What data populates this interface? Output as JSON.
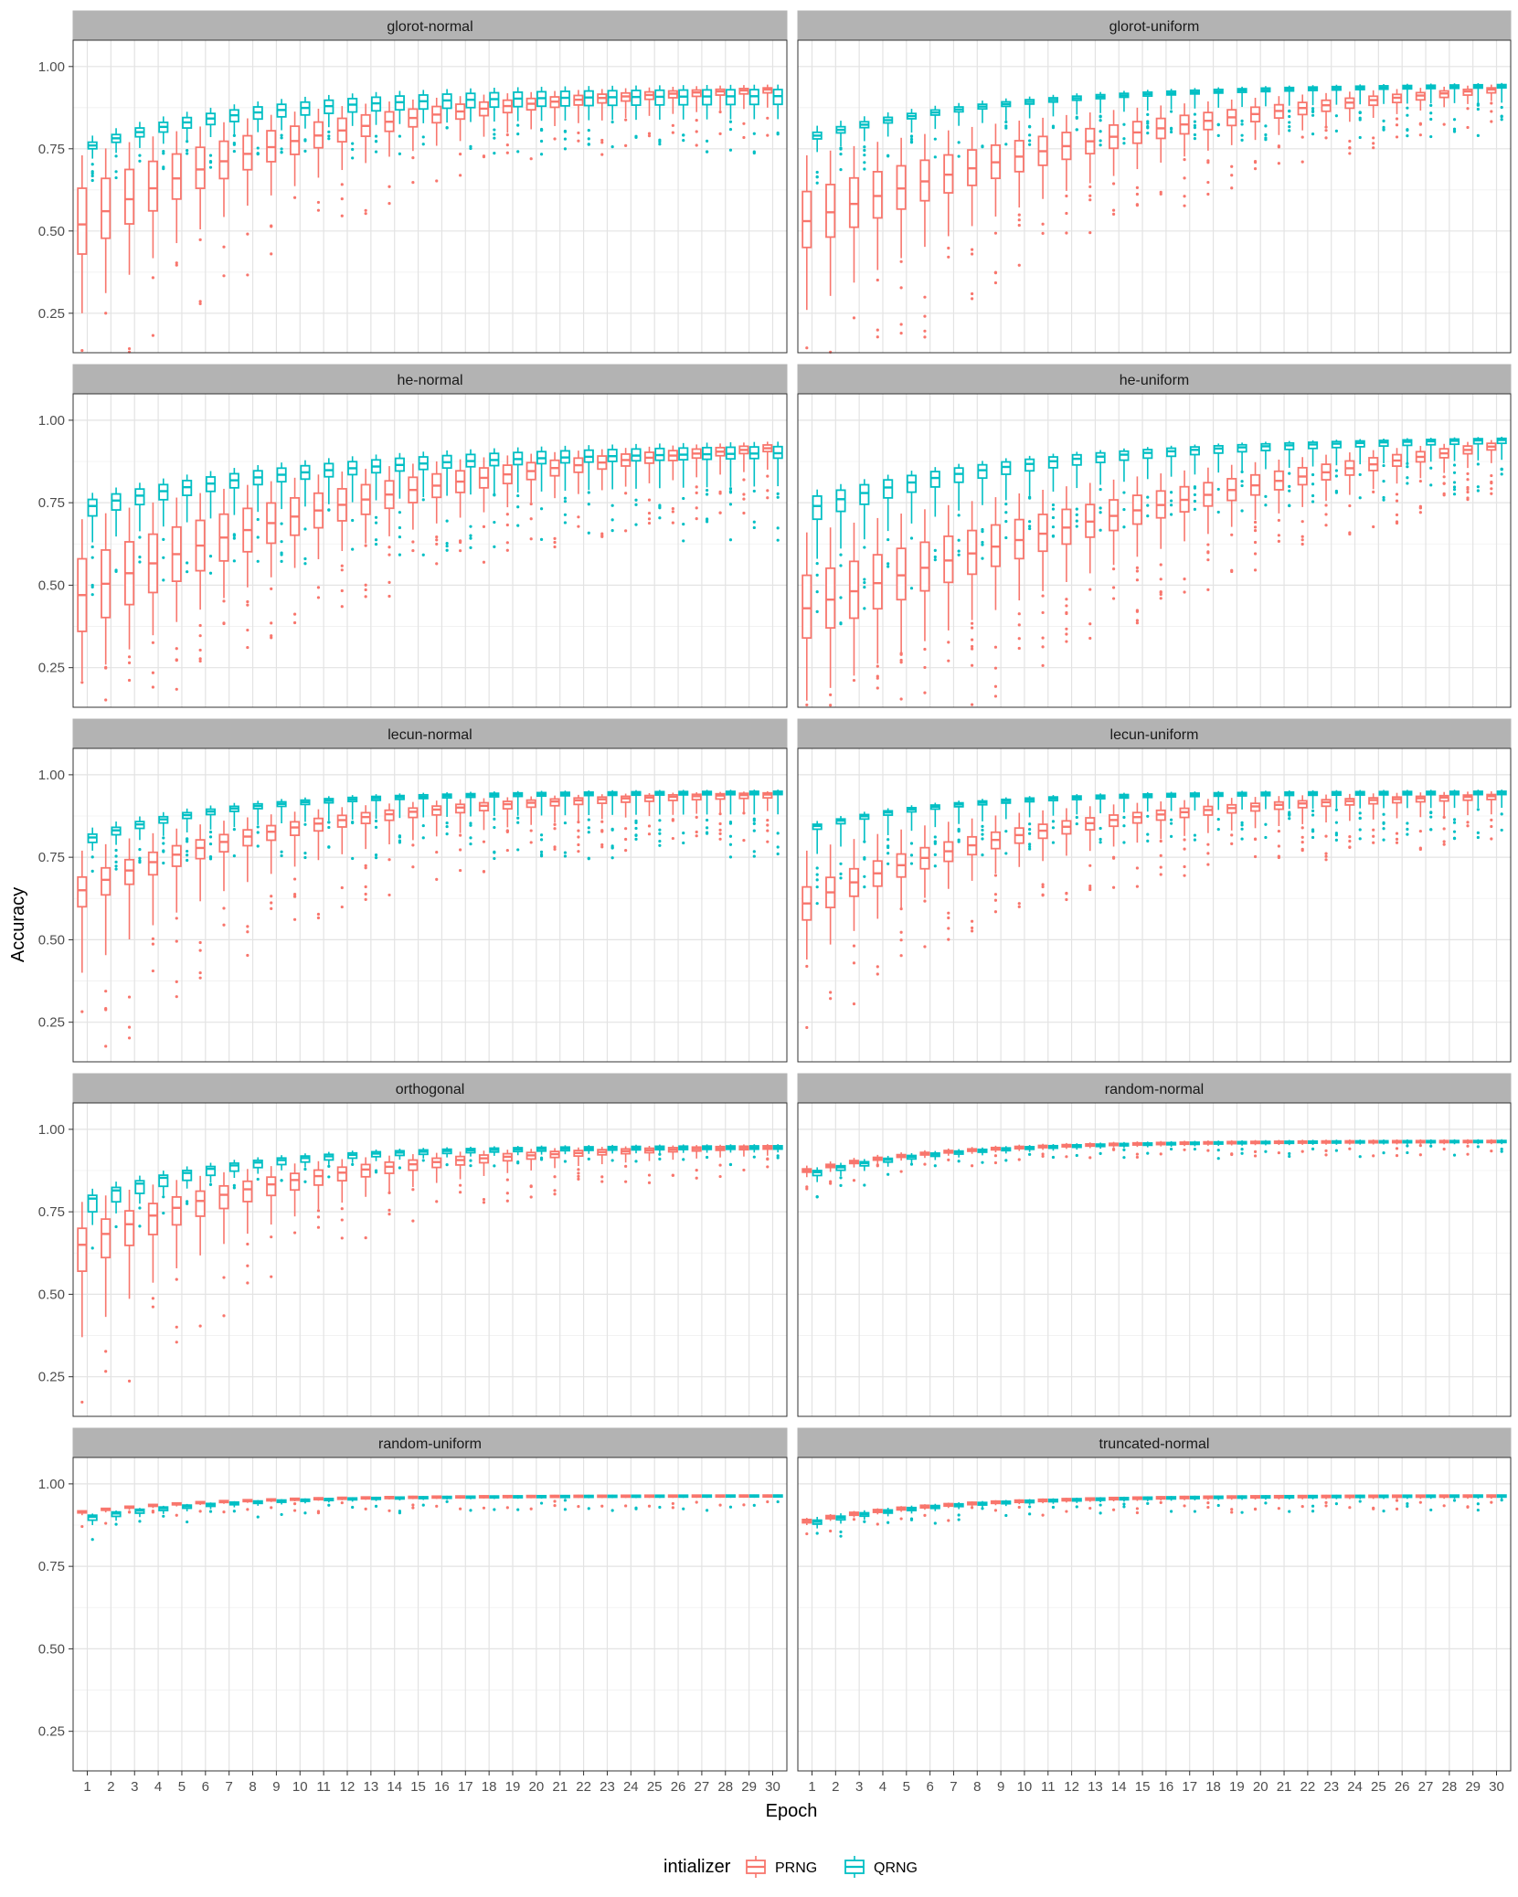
{
  "chart_data": {
    "type": "box",
    "xlabel": "Epoch",
    "ylabel": "Accuracy",
    "ylim": [
      0.13,
      1.08
    ],
    "yticks": [
      0.25,
      0.5,
      0.75,
      1.0
    ],
    "ytick_labels": [
      "0.25",
      "0.50",
      "0.75",
      "1.00"
    ],
    "x": [
      1,
      2,
      3,
      4,
      5,
      6,
      7,
      8,
      9,
      10,
      11,
      12,
      13,
      14,
      15,
      16,
      17,
      18,
      19,
      20,
      21,
      22,
      23,
      24,
      25,
      26,
      27,
      28,
      29,
      30
    ],
    "grid": true,
    "legend": {
      "title": "intializer",
      "position": "bottom",
      "entries": [
        {
          "name": "PRNG",
          "color": "#F8766D"
        },
        {
          "name": "QRNG",
          "color": "#00BFC4"
        }
      ]
    },
    "series_colors": {
      "PRNG": "#F8766D",
      "QRNG": "#00BFC4"
    },
    "facets": [
      {
        "name": "glorot-normal",
        "PRNG": {
          "first": [
            0.25,
            0.43,
            0.52,
            0.63,
            0.73
          ],
          "final": [
            0.875,
            0.92,
            0.93,
            0.935,
            0.945
          ],
          "rate": 0.28,
          "spread": 1.0,
          "outliers": 0.5
        },
        "QRNG": {
          "first": [
            0.72,
            0.75,
            0.76,
            0.77,
            0.79
          ],
          "final": [
            0.84,
            0.885,
            0.91,
            0.93,
            0.945
          ],
          "rate": 0.45,
          "spread": 1.7,
          "outliers": 0.8
        }
      },
      {
        "name": "glorot-uniform",
        "PRNG": {
          "first": [
            0.26,
            0.45,
            0.53,
            0.62,
            0.73
          ],
          "final": [
            0.895,
            0.92,
            0.93,
            0.935,
            0.945
          ],
          "rate": 0.16,
          "spread": 0.8,
          "outliers": 0.7
        },
        "QRNG": {
          "first": [
            0.74,
            0.78,
            0.79,
            0.8,
            0.82
          ],
          "final": [
            0.89,
            0.935,
            0.94,
            0.945,
            0.95
          ],
          "rate": 0.35,
          "spread": 1.0,
          "outliers": 1.0
        }
      },
      {
        "name": "he-normal",
        "PRNG": {
          "first": [
            0.21,
            0.36,
            0.47,
            0.58,
            0.7
          ],
          "final": [
            0.85,
            0.905,
            0.915,
            0.925,
            0.935
          ],
          "rate": 0.2,
          "spread": 1.0,
          "outliers": 0.8
        },
        "QRNG": {
          "first": [
            0.63,
            0.71,
            0.74,
            0.76,
            0.78
          ],
          "final": [
            0.8,
            0.885,
            0.9,
            0.92,
            0.935
          ],
          "rate": 0.3,
          "spread": 1.4,
          "outliers": 0.8
        }
      },
      {
        "name": "he-uniform",
        "PRNG": {
          "first": [
            0.15,
            0.34,
            0.43,
            0.53,
            0.66
          ],
          "final": [
            0.87,
            0.91,
            0.92,
            0.93,
            0.94
          ],
          "rate": 0.1,
          "spread": 1.0,
          "outliers": 1.2
        },
        "QRNG": {
          "first": [
            0.58,
            0.7,
            0.74,
            0.77,
            0.79
          ],
          "final": [
            0.88,
            0.93,
            0.94,
            0.945,
            0.95
          ],
          "rate": 0.3,
          "spread": 1.0,
          "outliers": 1.0
        }
      },
      {
        "name": "lecun-normal",
        "PRNG": {
          "first": [
            0.4,
            0.6,
            0.65,
            0.69,
            0.77
          ],
          "final": [
            0.89,
            0.93,
            0.94,
            0.945,
            0.95
          ],
          "rate": 0.32,
          "spread": 0.6,
          "outliers": 0.8
        },
        "QRNG": {
          "first": [
            0.77,
            0.795,
            0.81,
            0.82,
            0.84
          ],
          "final": [
            0.88,
            0.94,
            0.945,
            0.95,
            0.955
          ],
          "rate": 0.5,
          "spread": 0.5,
          "outliers": 1.0
        }
      },
      {
        "name": "lecun-uniform",
        "PRNG": {
          "first": [
            0.44,
            0.56,
            0.61,
            0.66,
            0.77
          ],
          "final": [
            0.88,
            0.925,
            0.935,
            0.94,
            0.95
          ],
          "rate": 0.3,
          "spread": 0.6,
          "outliers": 0.8
        },
        "QRNG": {
          "first": [
            0.76,
            0.835,
            0.845,
            0.85,
            0.86
          ],
          "final": [
            0.9,
            0.94,
            0.945,
            0.95,
            0.955
          ],
          "rate": 0.5,
          "spread": 0.5,
          "outliers": 1.0
        }
      },
      {
        "name": "orthogonal",
        "PRNG": {
          "first": [
            0.37,
            0.57,
            0.65,
            0.7,
            0.78
          ],
          "final": [
            0.92,
            0.94,
            0.945,
            0.95,
            0.955
          ],
          "rate": 0.33,
          "spread": 0.5,
          "outliers": 0.6
        },
        "QRNG": {
          "first": [
            0.71,
            0.75,
            0.79,
            0.8,
            0.82
          ],
          "final": [
            0.93,
            0.94,
            0.945,
            0.95,
            0.955
          ],
          "rate": 0.5,
          "spread": 0.4,
          "outliers": 0.4
        }
      },
      {
        "name": "random-normal",
        "PRNG": {
          "first": [
            0.855,
            0.87,
            0.875,
            0.88,
            0.89
          ],
          "final": [
            0.955,
            0.96,
            0.963,
            0.966,
            0.97
          ],
          "rate": 0.5,
          "spread": 0.3,
          "outliers": 0.3
        },
        "QRNG": {
          "first": [
            0.84,
            0.86,
            0.87,
            0.875,
            0.885
          ],
          "final": [
            0.955,
            0.96,
            0.963,
            0.966,
            0.97
          ],
          "rate": 0.5,
          "spread": 0.3,
          "outliers": 0.3
        }
      },
      {
        "name": "random-uniform",
        "PRNG": {
          "first": [
            0.905,
            0.912,
            0.915,
            0.918,
            0.92
          ],
          "final": [
            0.958,
            0.962,
            0.964,
            0.966,
            0.968
          ],
          "rate": 0.5,
          "spread": 0.3,
          "outliers": 0.3
        },
        "QRNG": {
          "first": [
            0.875,
            0.89,
            0.9,
            0.905,
            0.91
          ],
          "final": [
            0.958,
            0.962,
            0.964,
            0.966,
            0.968
          ],
          "rate": 0.5,
          "spread": 0.3,
          "outliers": 0.3
        }
      },
      {
        "name": "truncated-normal",
        "PRNG": {
          "first": [
            0.875,
            0.882,
            0.887,
            0.892,
            0.897
          ],
          "final": [
            0.955,
            0.96,
            0.963,
            0.966,
            0.968
          ],
          "rate": 0.5,
          "spread": 0.3,
          "outliers": 0.3
        },
        "QRNG": {
          "first": [
            0.865,
            0.878,
            0.885,
            0.89,
            0.9
          ],
          "final": [
            0.955,
            0.96,
            0.963,
            0.966,
            0.968
          ],
          "rate": 0.5,
          "spread": 0.3,
          "outliers": 0.3
        }
      }
    ]
  }
}
